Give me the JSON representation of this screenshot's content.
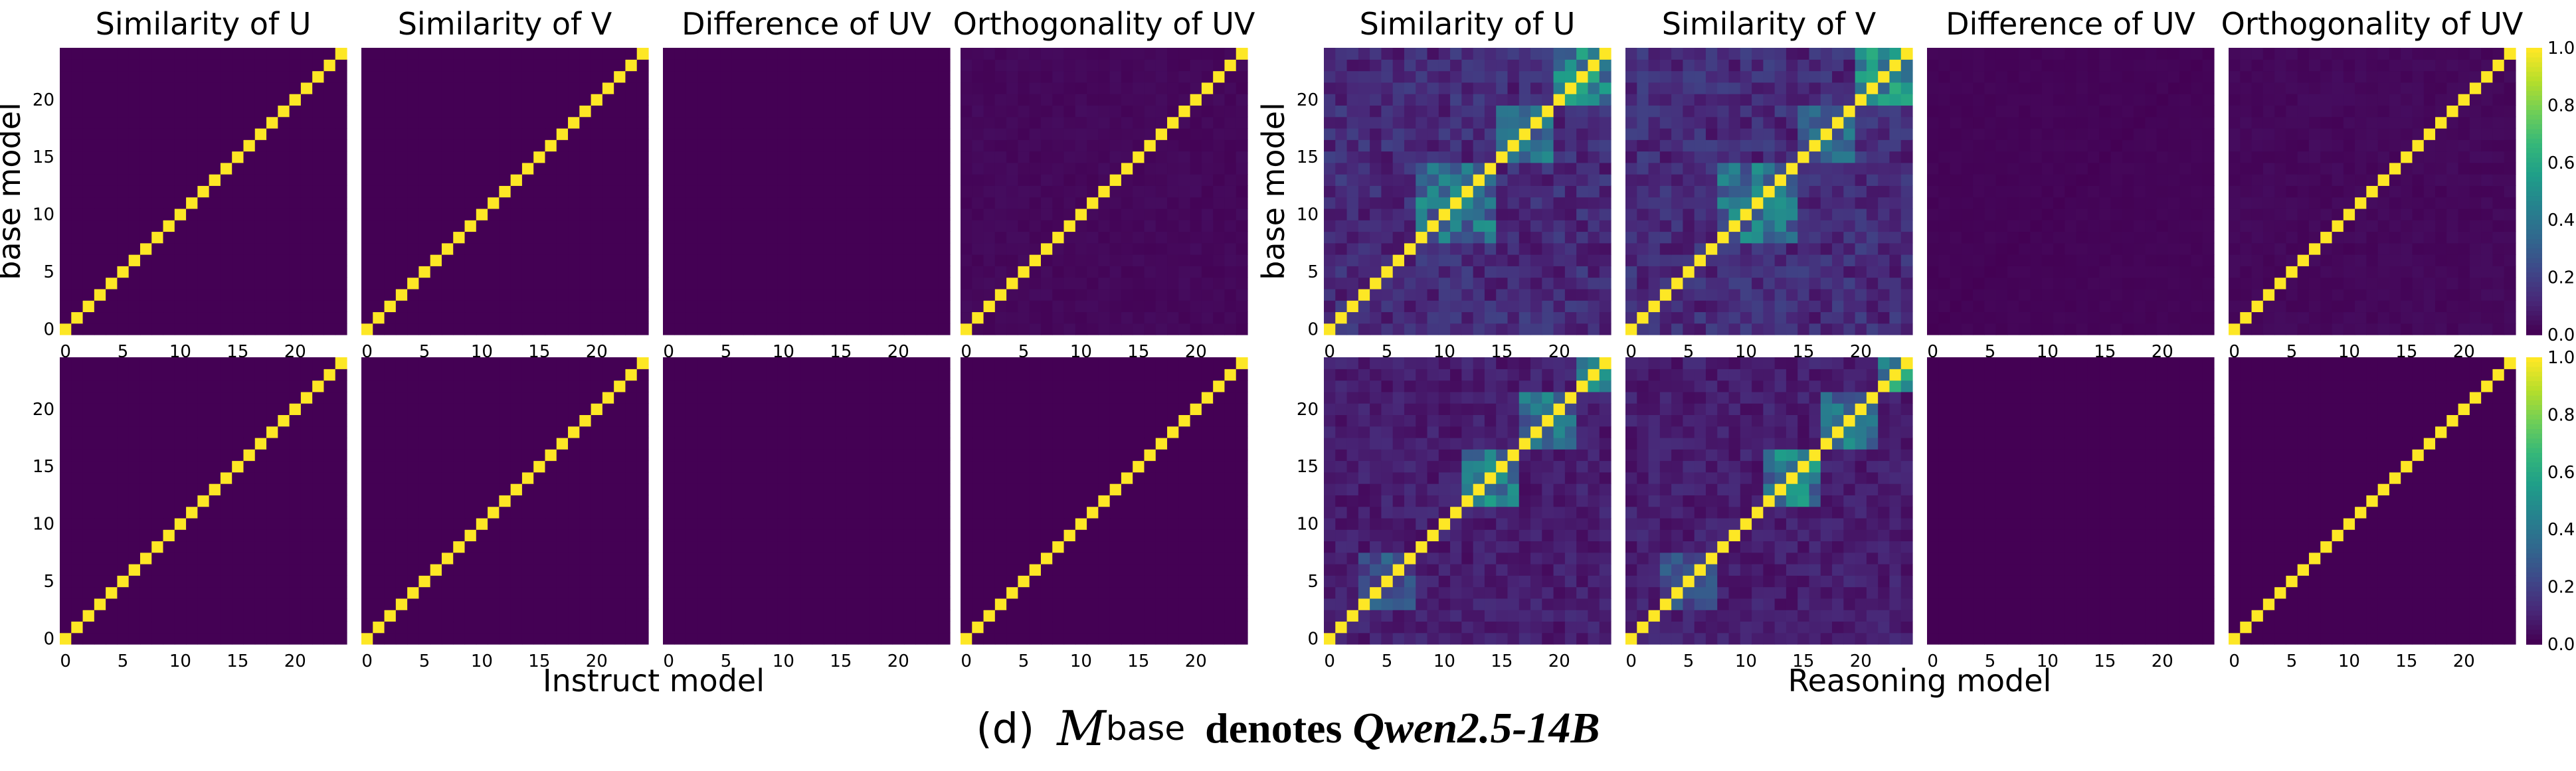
{
  "colors": {
    "viridis": [
      "#440154",
      "#482878",
      "#3e4989",
      "#31688e",
      "#26828e",
      "#1f9e89",
      "#35b779",
      "#6ece58",
      "#b5de2b",
      "#fde725"
    ]
  },
  "chart_data": [
    {
      "type": "heatmap",
      "group": "Instruct model",
      "xlabel": "Instruct model",
      "ylabel": "base model",
      "size": 25,
      "xticks": [
        0,
        5,
        10,
        15,
        20
      ],
      "yticks": [
        0,
        5,
        10,
        15,
        20
      ],
      "value_range": [
        0,
        1
      ],
      "colorbar": false,
      "rows": [
        {
          "panels": [
            {
              "title": "Similarity of U",
              "diagonal": 1.0,
              "off_diagonal": 0.0
            },
            {
              "title": "Similarity of V",
              "diagonal": 1.0,
              "off_diagonal": 0.0
            },
            {
              "title": "Difference of UV",
              "diagonal": 0.0,
              "off_diagonal": 0.0
            },
            {
              "title": "Orthogonality of UV",
              "diagonal": 1.0,
              "off_diagonal": 0.02
            }
          ]
        },
        {
          "panels": [
            {
              "title": "",
              "diagonal": 1.0,
              "off_diagonal": 0.0
            },
            {
              "title": "",
              "diagonal": 1.0,
              "off_diagonal": 0.0
            },
            {
              "title": "",
              "diagonal": 0.0,
              "off_diagonal": 0.0
            },
            {
              "title": "",
              "diagonal": 1.0,
              "off_diagonal": 0.0
            }
          ]
        }
      ]
    },
    {
      "type": "heatmap",
      "group": "Reasoning model",
      "xlabel": "Reasoning model",
      "ylabel": "base model",
      "size": 25,
      "xticks": [
        0,
        5,
        10,
        15,
        20
      ],
      "yticks": [
        0,
        5,
        10,
        15,
        20
      ],
      "value_range": [
        0,
        1
      ],
      "colorbar": true,
      "colorbar_ticks": [
        0.0,
        0.2,
        0.4,
        0.6,
        0.8,
        1.0
      ],
      "rows": [
        {
          "panels": [
            {
              "title": "Similarity of U",
              "diagonal": 1.0,
              "off_diagonal": 0.12,
              "blocks": [
                {
                  "range": [
                    8,
                    14
                  ],
                  "value": 0.45
                },
                {
                  "range": [
                    15,
                    19
                  ],
                  "value": 0.42
                },
                {
                  "range": [
                    20,
                    24
                  ],
                  "value": 0.55
                }
              ]
            },
            {
              "title": "Similarity of V",
              "diagonal": 1.0,
              "off_diagonal": 0.12,
              "blocks": [
                {
                  "range": [
                    8,
                    14
                  ],
                  "value": 0.45
                },
                {
                  "range": [
                    15,
                    19
                  ],
                  "value": 0.42
                },
                {
                  "range": [
                    20,
                    24
                  ],
                  "value": 0.55
                }
              ]
            },
            {
              "title": "Difference of UV",
              "diagonal": 0.0,
              "off_diagonal": 0.01
            },
            {
              "title": "Orthogonality of UV",
              "diagonal": 1.0,
              "off_diagonal": 0.02
            }
          ]
        },
        {
          "panels": [
            {
              "title": "",
              "diagonal": 1.0,
              "off_diagonal": 0.08,
              "blocks": [
                {
                  "range": [
                    3,
                    7
                  ],
                  "value": 0.3
                },
                {
                  "range": [
                    12,
                    16
                  ],
                  "value": 0.5
                },
                {
                  "range": [
                    17,
                    21
                  ],
                  "value": 0.45
                },
                {
                  "range": [
                    22,
                    24
                  ],
                  "value": 0.6
                }
              ]
            },
            {
              "title": "",
              "diagonal": 1.0,
              "off_diagonal": 0.08,
              "blocks": [
                {
                  "range": [
                    3,
                    7
                  ],
                  "value": 0.3
                },
                {
                  "range": [
                    12,
                    16
                  ],
                  "value": 0.5
                },
                {
                  "range": [
                    17,
                    21
                  ],
                  "value": 0.45
                },
                {
                  "range": [
                    22,
                    24
                  ],
                  "value": 0.6
                }
              ]
            },
            {
              "title": "",
              "diagonal": 0.0,
              "off_diagonal": 0.0
            },
            {
              "title": "",
              "diagonal": 1.0,
              "off_diagonal": 0.0
            }
          ]
        }
      ]
    }
  ],
  "caption": {
    "label": "(d)",
    "symbol": "M",
    "subscript": "base",
    "denotes": "denotes",
    "model": "Qwen2.5-14B"
  }
}
